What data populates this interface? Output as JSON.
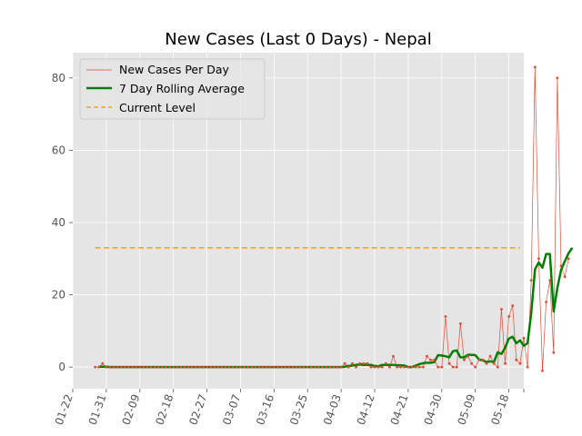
{
  "chart_data": {
    "type": "line",
    "title": "New Cases (Last 0 Days) - Nepal",
    "xlabel": "",
    "ylabel": "",
    "x_ticks": [
      "01-22",
      "01-31",
      "02-09",
      "02-18",
      "02-27",
      "03-07",
      "03-16",
      "03-25",
      "04-03",
      "04-12",
      "04-21",
      "04-30",
      "05-09",
      "05-18"
    ],
    "y_ticks": [
      0,
      20,
      40,
      60,
      80
    ],
    "xlim": [
      "2020-01-22",
      "2020-05-22"
    ],
    "ylim": [
      -6,
      87
    ],
    "grid": true,
    "legend_position": "top-left",
    "colors": {
      "background": "#e5e5e5",
      "grid": "#ffffff",
      "daily": "#e24a33",
      "rolling": "#008000",
      "current": "#ffa500"
    },
    "series": [
      {
        "name": "New Cases Per Day",
        "start_date": "2020-01-28",
        "values": [
          0,
          0,
          1,
          0,
          0,
          0,
          0,
          0,
          0,
          0,
          0,
          0,
          0,
          0,
          0,
          0,
          0,
          0,
          0,
          0,
          0,
          0,
          0,
          0,
          0,
          0,
          0,
          0,
          0,
          0,
          0,
          0,
          0,
          0,
          0,
          0,
          0,
          0,
          0,
          0,
          0,
          0,
          0,
          0,
          0,
          0,
          0,
          0,
          0,
          0,
          0,
          0,
          0,
          0,
          0,
          0,
          0,
          0,
          0,
          0,
          0,
          0,
          0,
          0,
          0,
          0,
          0,
          1,
          0,
          1,
          0,
          1,
          1,
          1,
          0,
          0,
          0,
          0,
          1,
          0,
          3,
          0,
          0,
          0,
          0,
          0,
          0,
          0,
          0,
          3,
          2,
          2,
          0,
          0,
          14,
          1,
          0,
          0,
          12,
          2,
          3,
          1,
          0,
          2,
          2,
          1,
          3,
          1,
          0,
          16,
          1,
          14,
          17,
          2,
          1,
          8,
          0,
          24,
          83,
          30,
          -1,
          18,
          24,
          4,
          80,
          28,
          25,
          30
        ]
      },
      {
        "name": "7 Day Rolling Average",
        "start_date": "2020-01-29",
        "values": [
          0.1,
          0.1,
          0.1,
          0,
          0,
          0,
          0,
          0,
          0,
          0,
          0,
          0,
          0,
          0,
          0,
          0,
          0,
          0,
          0,
          0,
          0,
          0,
          0,
          0,
          0,
          0,
          0,
          0,
          0,
          0,
          0,
          0,
          0,
          0,
          0,
          0,
          0,
          0,
          0,
          0,
          0,
          0,
          0,
          0,
          0,
          0,
          0,
          0,
          0,
          0,
          0,
          0,
          0,
          0,
          0,
          0,
          0,
          0,
          0,
          0,
          0,
          0,
          0,
          0,
          0,
          0,
          0.1,
          0.3,
          0.4,
          0.6,
          0.7,
          0.6,
          0.6,
          0.6,
          0.3,
          0.2,
          0.6,
          0.6,
          0.6,
          0.6,
          0.5,
          0.5,
          0.4,
          0,
          0,
          0.4,
          0.8,
          1.1,
          1.2,
          1.2,
          1.4,
          3.3,
          3.2,
          3.0,
          2.7,
          4.4,
          4.6,
          2.7,
          2.7,
          3.4,
          3.4,
          3.3,
          2.1,
          1.9,
          1.4,
          1.6,
          1.4,
          4.1,
          3.6,
          5.4,
          7.9,
          8.4,
          6.6,
          7.4,
          5.9,
          6.6,
          15,
          27,
          29,
          27.5,
          31.3,
          31.3,
          15.4,
          21.9,
          26.9,
          29.3,
          31.5,
          33
        ]
      },
      {
        "name": "Current Level",
        "start_date": "2020-01-28",
        "end_date": "2020-05-21",
        "values": [
          33,
          33
        ]
      }
    ]
  }
}
